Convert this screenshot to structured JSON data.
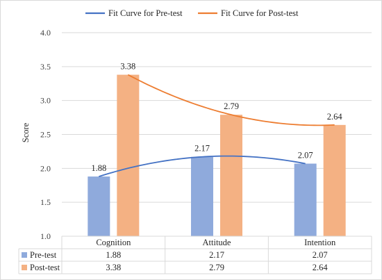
{
  "chart_data": {
    "type": "bar",
    "ylabel": "Score",
    "ylim": [
      1.0,
      4.0
    ],
    "yticks": [
      "1.0",
      "1.5",
      "2.0",
      "2.5",
      "3.0",
      "3.5",
      "4.0"
    ],
    "categories": [
      "Cognition",
      "Attitude",
      "Intention"
    ],
    "series": [
      {
        "name": "Pre-test",
        "values": [
          1.88,
          2.17,
          2.07
        ],
        "labels": [
          "1.88",
          "2.17",
          "2.07"
        ],
        "color": "#8faadc"
      },
      {
        "name": "Post-test",
        "values": [
          3.38,
          2.79,
          2.64
        ],
        "labels": [
          "3.38",
          "2.79",
          "2.64"
        ],
        "color": "#f4b183"
      }
    ],
    "fit_curves": [
      {
        "name": "Fit Curve for Pre-test",
        "series": "Pre-test",
        "color": "#4472c4"
      },
      {
        "name": "Fit Curve for Post-test",
        "series": "Post-test",
        "color": "#ed7d31"
      }
    ],
    "legend_position": "top",
    "data_table": true,
    "grid": true
  }
}
